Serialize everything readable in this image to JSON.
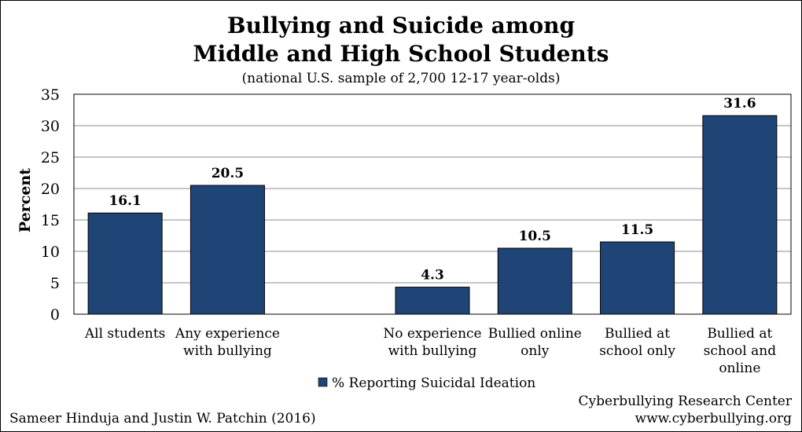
{
  "chart_data": {
    "type": "bar",
    "title": "Bullying and Suicide among",
    "title_line2": "Middle and High School Students",
    "subtitle": "(national U.S. sample of 2,700 12-17 year-olds)",
    "ylabel": "Percent",
    "ylim": [
      0,
      35
    ],
    "yticks": [
      "0",
      "5",
      "10",
      "15",
      "20",
      "25",
      "30",
      "35"
    ],
    "grid": true,
    "legend_position": "bottom-center",
    "bar_color": "#1f4577",
    "categories": [
      [
        "All students"
      ],
      [
        "Any experience",
        "with bullying"
      ],
      [],
      [
        "No experience",
        "with bullying"
      ],
      [
        "Bullied online",
        "only"
      ],
      [
        "Bullied at",
        "school only"
      ],
      [
        "Bullied at",
        "school and",
        "online"
      ]
    ],
    "series": [
      {
        "name": "% Reporting Suicidal Ideation",
        "values": [
          16.1,
          20.5,
          null,
          4.3,
          10.5,
          11.5,
          31.6
        ],
        "labels": [
          "16.1",
          "20.5",
          "",
          "4.3",
          "10.5",
          "11.5",
          "31.6"
        ]
      }
    ]
  },
  "credits": {
    "left": "Sameer Hinduja and Justin W. Patchin (2016)",
    "right_line1": "Cyberbullying Research Center",
    "right_line2": "www.cyberbullying.org"
  }
}
